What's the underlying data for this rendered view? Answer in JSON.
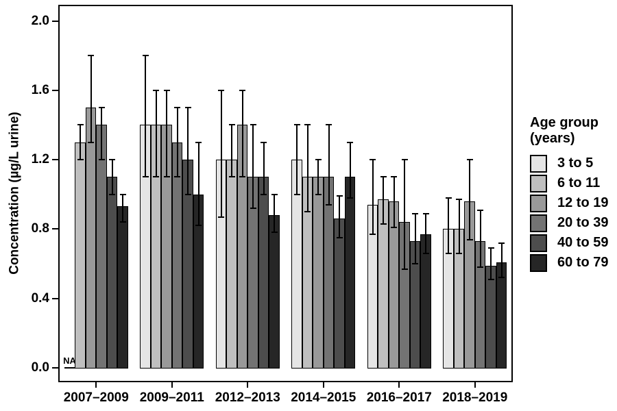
{
  "chart_data": {
    "type": "bar",
    "title": "",
    "xlabel": "",
    "ylabel": "Concentration (µg/L urine)",
    "ylim": [
      0.0,
      2.0
    ],
    "yticks": [
      "0.0",
      "0.4",
      "0.8",
      "1.2",
      "1.6",
      "2.0"
    ],
    "grid": "off",
    "legend_position": "right",
    "legend_title": {
      "line1": "Age group",
      "line2": "(years)"
    },
    "na_label": "NA",
    "categories": [
      "2007–2009",
      "2009–2011",
      "2012–2013",
      "2014–2015",
      "2016–2017",
      "2018–2019"
    ],
    "series": [
      {
        "name": "3 to 5",
        "color": "#e5e5e5",
        "values": [
          null,
          1.4,
          1.2,
          1.2,
          0.94,
          0.8
        ],
        "ci_low": [
          null,
          1.1,
          0.87,
          1.0,
          0.77,
          0.66
        ],
        "ci_high": [
          null,
          1.8,
          1.6,
          1.4,
          1.2,
          0.98
        ]
      },
      {
        "name": "6 to 11",
        "color": "#bfbfbf",
        "values": [
          1.3,
          1.4,
          1.2,
          1.1,
          0.97,
          0.8
        ],
        "ci_low": [
          1.2,
          1.1,
          1.1,
          0.9,
          0.83,
          0.66
        ],
        "ci_high": [
          1.4,
          1.6,
          1.4,
          1.4,
          1.1,
          0.97
        ]
      },
      {
        "name": "12 to 19",
        "color": "#999999",
        "values": [
          1.5,
          1.4,
          1.4,
          1.1,
          0.96,
          0.96
        ],
        "ci_low": [
          1.3,
          1.1,
          1.1,
          1.0,
          0.81,
          0.74
        ],
        "ci_high": [
          1.8,
          1.6,
          1.6,
          1.2,
          1.1,
          1.2
        ]
      },
      {
        "name": "20 to 39",
        "color": "#737373",
        "values": [
          1.4,
          1.3,
          1.1,
          1.1,
          0.84,
          0.73
        ],
        "ci_low": [
          1.2,
          1.1,
          0.92,
          0.94,
          0.57,
          0.58
        ],
        "ci_high": [
          1.5,
          1.5,
          1.4,
          1.4,
          1.2,
          0.91
        ]
      },
      {
        "name": "40 to 59",
        "color": "#4d4d4d",
        "values": [
          1.1,
          1.2,
          1.1,
          0.86,
          0.73,
          0.59
        ],
        "ci_low": [
          1.0,
          1.0,
          1.0,
          0.75,
          0.6,
          0.51
        ],
        "ci_high": [
          1.2,
          1.5,
          1.3,
          0.99,
          0.89,
          0.69
        ]
      },
      {
        "name": "60 to 79",
        "color": "#262626",
        "values": [
          0.93,
          1.0,
          0.88,
          1.1,
          0.77,
          0.61
        ],
        "ci_low": [
          0.84,
          0.82,
          0.78,
          0.98,
          0.66,
          0.52
        ],
        "ci_high": [
          1.0,
          1.3,
          1.0,
          1.3,
          0.89,
          0.72
        ]
      }
    ]
  }
}
